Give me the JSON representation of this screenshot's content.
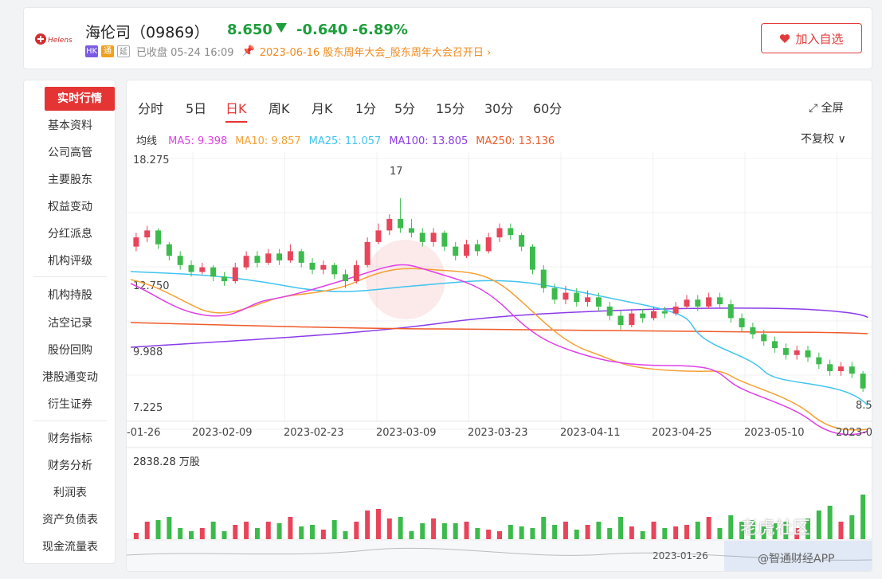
{
  "header": {
    "name": "海伦司",
    "code": "（09869）",
    "price": "8.650",
    "change": "-0.640",
    "change_pct": "-6.89%",
    "badges": [
      "HK",
      "通",
      "延"
    ],
    "status": "已收盘 05-24 16:09",
    "event": "2023-06-16 股东周年大会_股东周年大会召开日",
    "add_button": "加入自选",
    "colors": {
      "down": "#1e9e3c",
      "up": "#e33b3b",
      "accent": "#e43434",
      "event": "#f08a1e"
    }
  },
  "sidebar": {
    "items": [
      "实时行情",
      "基本资料",
      "公司高管",
      "主要股东",
      "权益变动",
      "分红派息",
      "机构评级",
      "机构持股",
      "沽空记录",
      "股份回购",
      "港股通变动",
      "衍生证券",
      "财务指标",
      "财务分析",
      "利润表",
      "资产负债表",
      "现金流量表"
    ],
    "active": "实时行情"
  },
  "tabs": [
    "分时",
    "5日",
    "日K",
    "周K",
    "月K",
    "1分",
    "5分",
    "15分",
    "30分",
    "60分"
  ],
  "active_tab": "日K",
  "fullscreen": "全屏",
  "ma": {
    "label": "均线",
    "items": [
      {
        "text": "MA5:  9.398",
        "color": "#e040e8"
      },
      {
        "text": "MA10:  9.857",
        "color": "#f5a033"
      },
      {
        "text": "MA25:  11.057",
        "color": "#3fc4ee"
      },
      {
        "text": "MA100:  13.805",
        "color": "#8a3ce8"
      },
      {
        "text": "MA250:  13.136",
        "color": "#ef5a28"
      }
    ]
  },
  "adjust": "不复权",
  "chart_data": {
    "type": "candlestick",
    "y_ticks": [
      "18.275",
      "12.750",
      "9.988",
      "7.225"
    ],
    "high_label": "17",
    "last_label": "8.5",
    "x_ticks": [
      "-01-26",
      "2023-02-09",
      "2023-02-23",
      "2023-03-09",
      "2023-03-23",
      "2023-04-11",
      "2023-04-25",
      "2023-05-10",
      "2023-0"
    ],
    "ylim": [
      7.225,
      18.275
    ],
    "volume_label": "2838.28 万股"
  },
  "navigator_date": "2023-01-26",
  "watermarks": [
    "老虎社区",
    "@智通财经APP"
  ]
}
